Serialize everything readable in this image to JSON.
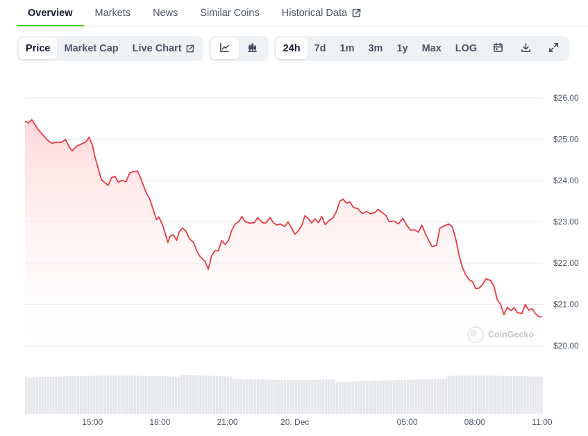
{
  "tabs": [
    {
      "label": "Overview",
      "active": true
    },
    {
      "label": "Markets"
    },
    {
      "label": "News"
    },
    {
      "label": "Similar Coins"
    },
    {
      "label": "Historical Data",
      "external": true
    }
  ],
  "toolbar": {
    "metric_tabs": [
      {
        "label": "Price",
        "active": true
      },
      {
        "label": "Market Cap"
      },
      {
        "label": "Live Chart",
        "external": true
      }
    ],
    "chart_type_icons": [
      "line-chart-icon",
      "candlestick-chart-icon"
    ],
    "ranges": [
      {
        "label": "24h",
        "active": true
      },
      {
        "label": "7d"
      },
      {
        "label": "1m"
      },
      {
        "label": "3m"
      },
      {
        "label": "1y"
      },
      {
        "label": "Max"
      },
      {
        "label": "LOG"
      }
    ],
    "action_icons": [
      "calendar-icon",
      "download-icon",
      "fullscreen-icon"
    ]
  },
  "watermark": "CoinGecko",
  "colors": {
    "line": "#ea3943",
    "fill_top": "#ffd6d8",
    "grid": "#e5e7eb",
    "volume": "#e5e7eb",
    "active_tab_underline": "#4bcc00"
  },
  "chart_data": {
    "type": "area",
    "x_unit": "hours since 12:00",
    "ylim": [
      19.9,
      26.0
    ],
    "y_ticks": [
      {
        "value": 26,
        "label": "$26.00"
      },
      {
        "value": 25,
        "label": "$25.00"
      },
      {
        "value": 24,
        "label": "$24.00"
      },
      {
        "value": 23,
        "label": "$23.00"
      },
      {
        "value": 22,
        "label": "$22.00"
      },
      {
        "value": 21,
        "label": "$21.00"
      },
      {
        "value": 20,
        "label": "$20.00"
      }
    ],
    "x_ticks": [
      {
        "t": 3,
        "label": "15:00"
      },
      {
        "t": 6,
        "label": "18:00"
      },
      {
        "t": 9,
        "label": "21:00"
      },
      {
        "t": 12,
        "label": "20. Dec"
      },
      {
        "t": 17,
        "label": "05:00"
      },
      {
        "t": 20,
        "label": "08:00"
      },
      {
        "t": 23,
        "label": "11:00"
      }
    ],
    "xlim": [
      -0.2,
      23.6
    ],
    "series": [
      {
        "values": [
          [
            0.0,
            25.43
          ],
          [
            0.15,
            25.4
          ],
          [
            0.3,
            25.47
          ],
          [
            0.45,
            25.35
          ],
          [
            0.6,
            25.22
          ],
          [
            0.8,
            25.1
          ],
          [
            1.0,
            24.98
          ],
          [
            1.2,
            24.9
          ],
          [
            1.4,
            24.93
          ],
          [
            1.6,
            24.92
          ],
          [
            1.8,
            24.99
          ],
          [
            2.0,
            24.78
          ],
          [
            2.1,
            24.72
          ],
          [
            2.3,
            24.83
          ],
          [
            2.5,
            24.88
          ],
          [
            2.7,
            24.93
          ],
          [
            2.85,
            25.05
          ],
          [
            3.0,
            24.85
          ],
          [
            3.1,
            24.6
          ],
          [
            3.25,
            24.3
          ],
          [
            3.4,
            24.02
          ],
          [
            3.55,
            23.95
          ],
          [
            3.7,
            23.88
          ],
          [
            3.85,
            24.07
          ],
          [
            4.0,
            24.1
          ],
          [
            4.15,
            23.96
          ],
          [
            4.3,
            24.0
          ],
          [
            4.5,
            23.97
          ],
          [
            4.65,
            24.18
          ],
          [
            4.85,
            24.22
          ],
          [
            5.0,
            24.23
          ],
          [
            5.1,
            24.12
          ],
          [
            5.25,
            23.9
          ],
          [
            5.4,
            23.7
          ],
          [
            5.55,
            23.55
          ],
          [
            5.7,
            23.3
          ],
          [
            5.85,
            23.05
          ],
          [
            5.95,
            23.12
          ],
          [
            6.1,
            22.95
          ],
          [
            6.25,
            22.7
          ],
          [
            6.35,
            22.5
          ],
          [
            6.45,
            22.65
          ],
          [
            6.6,
            22.68
          ],
          [
            6.75,
            22.55
          ],
          [
            6.85,
            22.75
          ],
          [
            7.0,
            22.85
          ],
          [
            7.15,
            22.78
          ],
          [
            7.3,
            22.6
          ],
          [
            7.5,
            22.5
          ],
          [
            7.65,
            22.28
          ],
          [
            7.8,
            22.15
          ],
          [
            8.0,
            22.05
          ],
          [
            8.15,
            21.85
          ],
          [
            8.3,
            22.18
          ],
          [
            8.45,
            22.3
          ],
          [
            8.6,
            22.3
          ],
          [
            8.75,
            22.55
          ],
          [
            8.9,
            22.45
          ],
          [
            9.05,
            22.55
          ],
          [
            9.2,
            22.8
          ],
          [
            9.35,
            22.95
          ],
          [
            9.5,
            23.0
          ],
          [
            9.65,
            23.13
          ],
          [
            9.8,
            23.0
          ],
          [
            10.0,
            22.97
          ],
          [
            10.2,
            22.98
          ],
          [
            10.35,
            23.1
          ],
          [
            10.55,
            22.98
          ],
          [
            10.7,
            22.97
          ],
          [
            10.9,
            23.1
          ],
          [
            11.05,
            22.98
          ],
          [
            11.2,
            22.92
          ],
          [
            11.35,
            22.95
          ],
          [
            11.55,
            22.88
          ],
          [
            11.7,
            23.0
          ],
          [
            11.85,
            22.85
          ],
          [
            12.0,
            22.7
          ],
          [
            12.15,
            22.78
          ],
          [
            12.3,
            22.9
          ],
          [
            12.45,
            23.15
          ],
          [
            12.6,
            23.08
          ],
          [
            12.75,
            22.97
          ],
          [
            12.9,
            23.07
          ],
          [
            13.05,
            22.98
          ],
          [
            13.2,
            23.13
          ],
          [
            13.35,
            22.93
          ],
          [
            13.5,
            23.02
          ],
          [
            13.7,
            23.1
          ],
          [
            13.85,
            23.25
          ],
          [
            14.0,
            23.5
          ],
          [
            14.15,
            23.55
          ],
          [
            14.3,
            23.45
          ],
          [
            14.45,
            23.48
          ],
          [
            14.6,
            23.35
          ],
          [
            14.8,
            23.32
          ],
          [
            15.0,
            23.2
          ],
          [
            15.2,
            23.25
          ],
          [
            15.35,
            23.2
          ],
          [
            15.55,
            23.22
          ],
          [
            15.7,
            23.3
          ],
          [
            15.9,
            23.22
          ],
          [
            16.05,
            23.15
          ],
          [
            16.2,
            23.0
          ],
          [
            16.4,
            23.02
          ],
          [
            16.6,
            22.95
          ],
          [
            16.8,
            23.08
          ],
          [
            17.0,
            22.9
          ],
          [
            17.15,
            22.8
          ],
          [
            17.35,
            22.8
          ],
          [
            17.5,
            22.75
          ],
          [
            17.65,
            22.92
          ],
          [
            17.8,
            22.72
          ],
          [
            17.95,
            22.55
          ],
          [
            18.1,
            22.4
          ],
          [
            18.3,
            22.43
          ],
          [
            18.45,
            22.85
          ],
          [
            18.65,
            22.9
          ],
          [
            18.85,
            22.95
          ],
          [
            19.0,
            22.88
          ],
          [
            19.15,
            22.6
          ],
          [
            19.3,
            22.2
          ],
          [
            19.45,
            21.9
          ],
          [
            19.6,
            21.72
          ],
          [
            19.75,
            21.6
          ],
          [
            19.9,
            21.55
          ],
          [
            20.05,
            21.38
          ],
          [
            20.2,
            21.4
          ],
          [
            20.35,
            21.48
          ],
          [
            20.5,
            21.62
          ],
          [
            20.7,
            21.58
          ],
          [
            20.85,
            21.45
          ],
          [
            21.0,
            21.12
          ],
          [
            21.15,
            21.0
          ],
          [
            21.3,
            20.75
          ],
          [
            21.45,
            20.93
          ],
          [
            21.6,
            20.85
          ],
          [
            21.75,
            20.92
          ],
          [
            21.9,
            20.8
          ],
          [
            22.1,
            20.78
          ],
          [
            22.25,
            21.0
          ],
          [
            22.4,
            20.86
          ],
          [
            22.55,
            20.9
          ],
          [
            22.7,
            20.78
          ],
          [
            22.85,
            20.7
          ],
          [
            23.0,
            20.7
          ]
        ]
      }
    ]
  }
}
